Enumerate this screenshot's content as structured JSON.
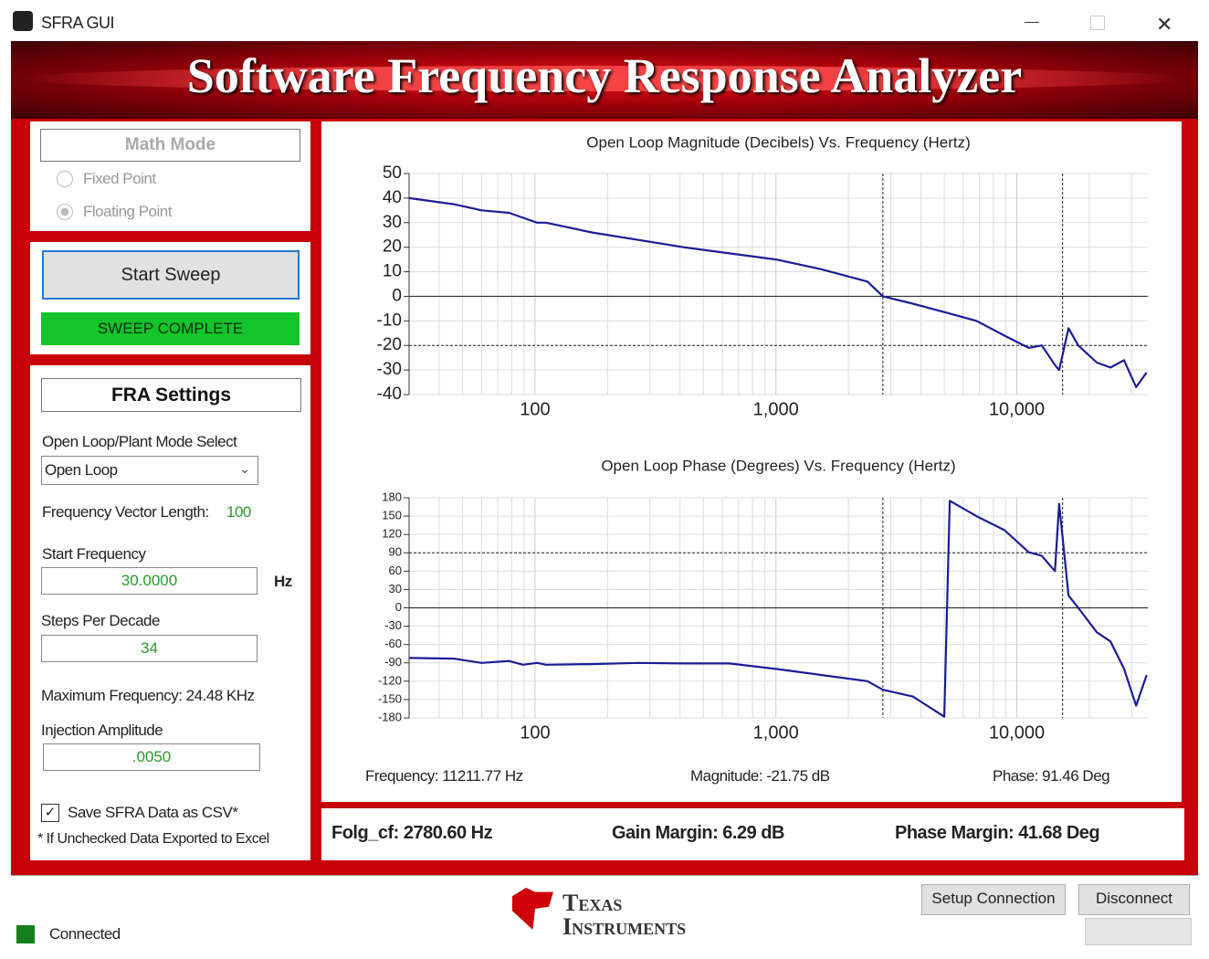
{
  "window": {
    "title": "SFRA GUI"
  },
  "banner": "Software Frequency Response Analyzer",
  "math_mode": {
    "title": "Math Mode",
    "options": [
      "Fixed Point",
      "Floating Point"
    ]
  },
  "sweep": {
    "button": "Start Sweep",
    "status": "SWEEP COMPLETE"
  },
  "fra_settings": {
    "title": "FRA Settings",
    "mode_label": "Open Loop/Plant Mode Select",
    "mode_value": "Open Loop",
    "vector_length_label": "Frequency Vector Length:",
    "vector_length": "100",
    "start_freq_label": "Start Frequency",
    "start_freq": "30.0000",
    "start_freq_unit": "Hz",
    "steps_label": "Steps Per Decade",
    "steps": "34",
    "max_freq": "Maximum Frequency: 24.48 KHz",
    "injection_label": "Injection Amplitude",
    "injection": ".0050",
    "csv_label": "Save SFRA Data as CSV*",
    "csv_note": "* If Unchecked Data Exported to Excel"
  },
  "cursor": {
    "frequency": "Frequency: 11211.77 Hz",
    "magnitude": "Magnitude: -21.75 dB",
    "phase": "Phase: 91.46 Deg"
  },
  "results": {
    "folg": "Folg_cf: 2780.60 Hz",
    "gain_margin": "Gain Margin: 6.29 dB",
    "phase_margin": "Phase Margin: 41.68 Deg"
  },
  "footer": {
    "logo_line1": "Texas",
    "logo_line2": "Instruments",
    "setup": "Setup Connection",
    "disconnect": "Disconnect",
    "status": "Connected"
  },
  "chart_data": [
    {
      "type": "line",
      "title": "Open Loop Magnitude (Decibels) Vs. Frequency (Hertz)",
      "xscale": "log",
      "grid": true,
      "color": "#1c1c96",
      "x": [
        30,
        46,
        60,
        78,
        89,
        102,
        111,
        172,
        267,
        414,
        641,
        1000,
        1550,
        2400,
        2780,
        3700,
        5270,
        6800,
        8900,
        11200,
        12700,
        14400,
        15000,
        16400,
        18000,
        21500,
        24500,
        27900,
        31300,
        34600
      ],
      "values": [
        40,
        37.5,
        35,
        34,
        32,
        30,
        30,
        26,
        23,
        20,
        17.5,
        15,
        11,
        6,
        0,
        -3,
        -7,
        -10,
        -16,
        -21,
        -20,
        -28,
        -30,
        -13,
        -20,
        -27,
        -29,
        -26,
        -37,
        -31
      ],
      "xlim": [
        30,
        35000
      ],
      "ylim": [
        -40,
        50
      ],
      "xticks": [
        100,
        {
          "value": 1000,
          "label": "1,000"
        },
        {
          "value": 10000,
          "label": "10,000"
        }
      ],
      "xminorticks": [
        40,
        50,
        60,
        70,
        80,
        90,
        200,
        300,
        400,
        500,
        600,
        700,
        800,
        900,
        2000,
        3000,
        4000,
        5000,
        6000,
        7000,
        8000,
        9000,
        20000,
        30000
      ],
      "yticks": [
        50,
        40,
        30,
        20,
        10,
        0,
        -10,
        -20,
        -30,
        -40
      ],
      "reference_x": [
        2780.6,
        15500
      ],
      "reference_y": [
        -20
      ]
    },
    {
      "type": "line",
      "title": "Open Loop Phase (Degrees) Vs. Frequency (Hertz)",
      "xscale": "log",
      "grid": true,
      "color": "#1c1c96",
      "x": [
        30,
        46,
        60,
        78,
        89,
        102,
        111,
        172,
        267,
        414,
        641,
        1000,
        1550,
        2400,
        2780,
        3700,
        5000,
        5270,
        6800,
        8900,
        11200,
        12700,
        14400,
        15000,
        16400,
        18000,
        21500,
        24500,
        27900,
        31300,
        34600
      ],
      "values": [
        -82,
        -83,
        -90,
        -87,
        -93,
        -90,
        -93,
        -92,
        -90,
        -91,
        -91,
        -100,
        -110,
        -120,
        -134,
        -145,
        -178,
        175,
        150,
        127,
        91,
        85,
        60,
        170,
        20,
        0,
        -40,
        -55,
        -100,
        -160,
        -110
      ],
      "xlim": [
        30,
        35000
      ],
      "ylim": [
        -180,
        180
      ],
      "xticks": [
        100,
        {
          "value": 1000,
          "label": "1,000"
        },
        {
          "value": 10000,
          "label": "10,000"
        }
      ],
      "xminorticks": [
        40,
        50,
        60,
        70,
        80,
        90,
        200,
        300,
        400,
        500,
        600,
        700,
        800,
        900,
        2000,
        3000,
        4000,
        5000,
        6000,
        7000,
        8000,
        9000,
        20000,
        30000
      ],
      "yticks": [
        180,
        150,
        120,
        90,
        60,
        30,
        0,
        -30,
        -60,
        -90,
        -120,
        -150,
        -180
      ],
      "reference_x": [
        2780.6,
        15500
      ],
      "reference_y": [
        90
      ]
    }
  ]
}
